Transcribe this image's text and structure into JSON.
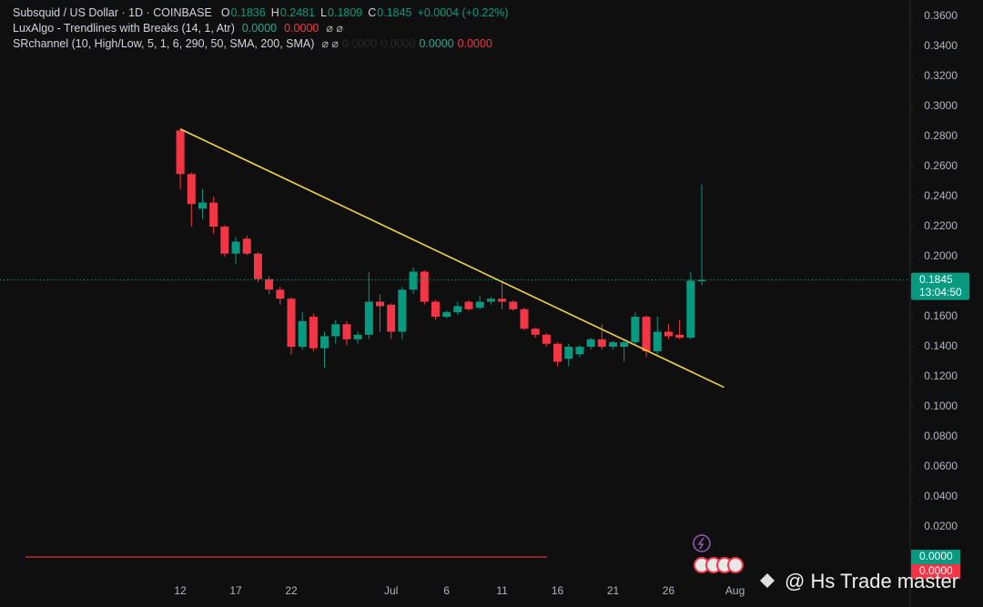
{
  "chart_data": {
    "type": "candlestick",
    "title": "Subsquid / US Dollar · 1D · COINBASE",
    "change": "+0.0004 (+0.22%)",
    "ohlc_labels": [
      "O",
      "H",
      "L",
      "C"
    ],
    "indicators": [
      {
        "name": "LuxAlgo - Trendlines with Breaks (14, 1, Atr)",
        "values": [
          "0.0000",
          "0.0000"
        ],
        "colors": [
          "#22ab94",
          "#f23645"
        ]
      },
      {
        "name": "SRchannel (10, High/Low, 5, 1, 6, 290, 50, SMA, 200, SMA)",
        "values": [
          "0.0000",
          "0.0000",
          "0.0000",
          "0.0000"
        ],
        "colors": [
          "#2a2a2a",
          "#2a2a2a",
          "#22ab94",
          "#f23645"
        ]
      }
    ],
    "categories": [
      "12",
      null,
      null,
      null,
      null,
      "17",
      null,
      null,
      null,
      null,
      "22",
      null,
      null,
      null,
      null,
      null,
      null,
      null,
      null,
      "Jul",
      null,
      null,
      null,
      null,
      "6",
      null,
      null,
      null,
      null,
      "11",
      null,
      null,
      null,
      null,
      "16",
      null,
      null,
      null,
      null,
      "21",
      null,
      null,
      null,
      null,
      "26",
      null,
      null,
      null,
      null,
      null,
      "Aug"
    ],
    "open": [
      0.284,
      0.255,
      0.232,
      0.236,
      0.22,
      0.202,
      0.212,
      0.202,
      0.185,
      0.178,
      0.172,
      0.14,
      0.16,
      0.139,
      0.147,
      0.155,
      0.145,
      0.148,
      0.17,
      0.168,
      0.15,
      0.178,
      0.19,
      0.17,
      0.16,
      0.163,
      0.17,
      0.166,
      0.17,
      0.172,
      0.17,
      0.165,
      0.152,
      0.148,
      0.142,
      0.132,
      0.135,
      0.14,
      0.145,
      0.14,
      0.14,
      0.143,
      0.16,
      0.137,
      0.15,
      0.148,
      0.146,
      0.1836,
      null,
      null,
      null
    ],
    "high": [
      0.285,
      0.256,
      0.245,
      0.24,
      0.221,
      0.213,
      0.214,
      0.203,
      0.187,
      0.18,
      0.173,
      0.163,
      0.162,
      0.15,
      0.158,
      0.157,
      0.15,
      0.19,
      0.175,
      0.169,
      0.18,
      0.193,
      0.191,
      0.171,
      0.164,
      0.17,
      0.171,
      0.174,
      0.173,
      0.183,
      0.171,
      0.166,
      0.153,
      0.149,
      0.143,
      0.142,
      0.141,
      0.146,
      0.155,
      0.144,
      0.144,
      0.163,
      0.161,
      0.16,
      0.155,
      0.158,
      0.19,
      0.2481,
      null,
      null,
      null
    ],
    "low": [
      0.245,
      0.22,
      0.225,
      0.215,
      0.2,
      0.195,
      0.201,
      0.183,
      0.175,
      0.168,
      0.135,
      0.138,
      0.137,
      0.126,
      0.142,
      0.141,
      0.142,
      0.145,
      0.15,
      0.145,
      0.145,
      0.175,
      0.168,
      0.158,
      0.159,
      0.161,
      0.164,
      0.165,
      0.168,
      0.165,
      0.164,
      0.151,
      0.146,
      0.14,
      0.127,
      0.127,
      0.133,
      0.138,
      0.138,
      0.138,
      0.13,
      0.141,
      0.133,
      0.135,
      0.145,
      0.145,
      0.145,
      0.1809,
      null,
      null,
      null
    ],
    "close": [
      0.255,
      0.235,
      0.236,
      0.22,
      0.202,
      0.21,
      0.202,
      0.185,
      0.178,
      0.172,
      0.14,
      0.157,
      0.139,
      0.147,
      0.155,
      0.145,
      0.148,
      0.17,
      0.167,
      0.15,
      0.178,
      0.19,
      0.17,
      0.16,
      0.163,
      0.167,
      0.165,
      0.17,
      0.172,
      0.17,
      0.165,
      0.152,
      0.148,
      0.142,
      0.13,
      0.14,
      0.14,
      0.145,
      0.14,
      0.143,
      0.143,
      0.16,
      0.137,
      0.15,
      0.147,
      0.146,
      0.184,
      0.1845,
      null,
      null,
      null
    ],
    "up_color": "#089981",
    "down_color": "#f23645",
    "trendline": {
      "start": [
        0,
        0.285
      ],
      "end": [
        49,
        0.113
      ],
      "color": "#f5d442"
    },
    "sr_line": {
      "value": 0,
      "color": "#f23645"
    },
    "countdown": "13:04:50",
    "indicator_price_labels": [
      {
        "value": 0,
        "label": "0.0000",
        "color": "#089981"
      },
      {
        "value": 0,
        "label": "0.0000",
        "color": "#f23645"
      }
    ],
    "ylim": [
      -0.0139,
      0.3709
    ],
    "yticks": [
      {
        "value": 0.02,
        "label": "0.0200"
      },
      {
        "value": 0.04,
        "label": "0.0400"
      },
      {
        "value": 0.06,
        "label": "0.0600"
      },
      {
        "value": 0.08,
        "label": "0.0800"
      },
      {
        "value": 0.1,
        "label": "0.1000"
      },
      {
        "value": 0.12,
        "label": "0.1200"
      },
      {
        "value": 0.14,
        "label": "0.1400"
      },
      {
        "value": 0.16,
        "label": "0.1600"
      },
      {
        "value": 0.18,
        "label": "0.1800"
      },
      {
        "value": 0.2,
        "label": "0.2000"
      },
      {
        "value": 0.22,
        "label": "0.2200"
      },
      {
        "value": 0.24,
        "label": "0.2400"
      },
      {
        "value": 0.26,
        "label": "0.2600"
      },
      {
        "value": 0.28,
        "label": "0.2800"
      },
      {
        "value": 0.3,
        "label": "0.3000"
      },
      {
        "value": 0.32,
        "label": "0.3200"
      },
      {
        "value": 0.34,
        "label": "0.3400"
      },
      {
        "value": 0.36,
        "label": "0.3600"
      }
    ],
    "watermark": "@ Hs Trade master"
  }
}
